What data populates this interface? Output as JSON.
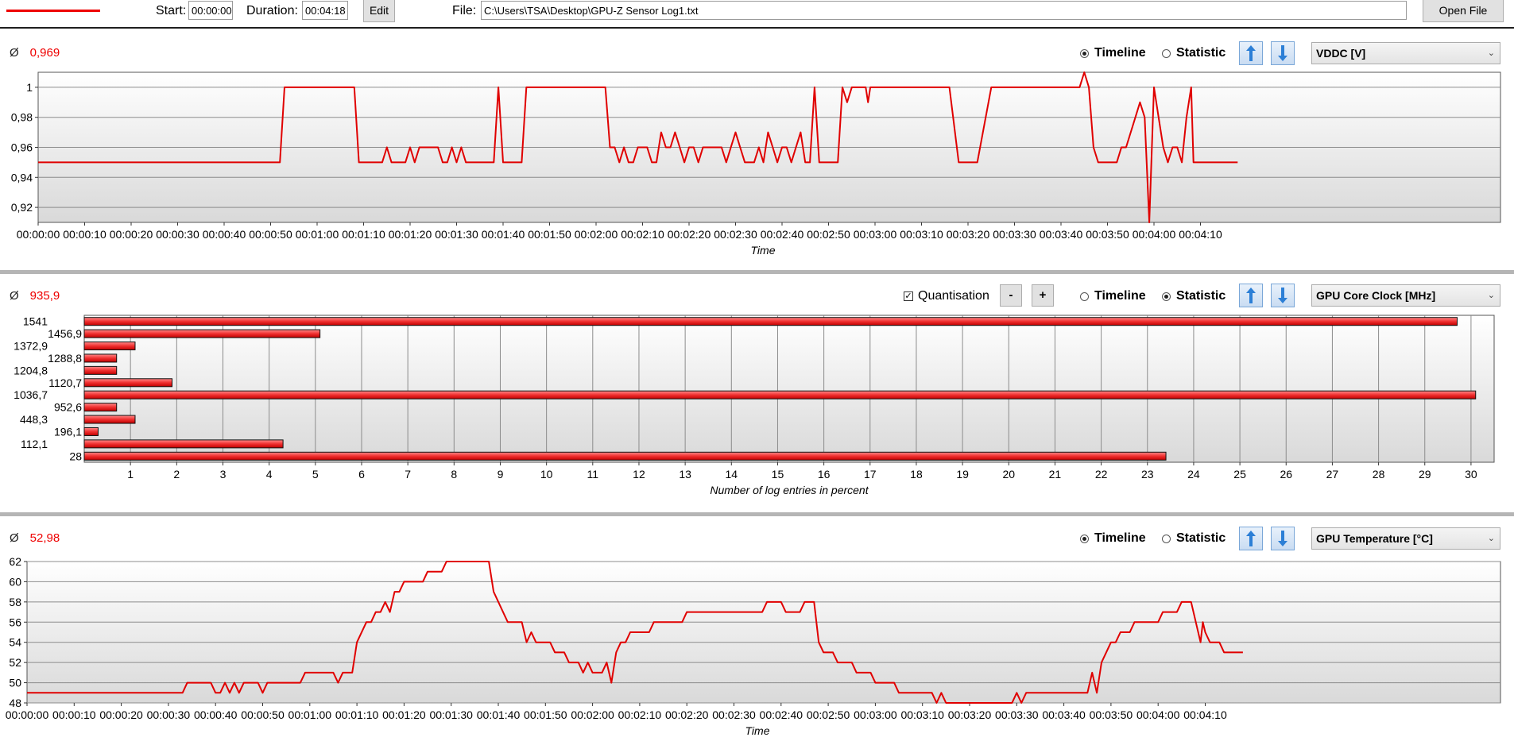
{
  "toolbar": {
    "start_label": "Start:",
    "start_value": "00:00:00",
    "duration_label": "Duration:",
    "duration_value": "00:04:18",
    "edit_label": "Edit",
    "file_label": "File:",
    "file_value": "C:\\Users\\TSA\\Desktop\\GPU-Z Sensor Log1.txt",
    "open_file_label": "Open File",
    "legend_color": "#e00000"
  },
  "panels": [
    {
      "avg_symbol": "Ø",
      "avg_value": "0,969",
      "timeline_label": "Timeline",
      "statistic_label": "Statistic",
      "mode": "Timeline",
      "sensor": "VDDC [V]"
    },
    {
      "avg_symbol": "Ø",
      "avg_value": "935,9",
      "quantisation_label": "Quantisation",
      "quantisation_checked": true,
      "minus_label": "-",
      "plus_label": "+",
      "timeline_label": "Timeline",
      "statistic_label": "Statistic",
      "mode": "Statistic",
      "sensor": "GPU Core Clock [MHz]"
    },
    {
      "avg_symbol": "Ø",
      "avg_value": "52,98",
      "timeline_label": "Timeline",
      "statistic_label": "Statistic",
      "mode": "Timeline",
      "sensor": "GPU Temperature [°C]"
    }
  ],
  "chart_data": [
    {
      "type": "line",
      "xlabel": "Time",
      "ylabel": "",
      "ylim": [
        0.91,
        1.01
      ],
      "yticks": [
        "1",
        "0,98",
        "0,96",
        "0,94",
        "0,92"
      ],
      "xticks": [
        "00:00:00",
        "00:00:10",
        "00:00:20",
        "00:00:30",
        "00:00:40",
        "00:00:50",
        "00:01:00",
        "00:01:10",
        "00:01:20",
        "00:01:30",
        "00:01:40",
        "00:01:50",
        "00:02:00",
        "00:02:10",
        "00:02:20",
        "00:02:30",
        "00:02:40",
        "00:02:50",
        "00:03:00",
        "00:03:10",
        "00:03:20",
        "00:03:30",
        "00:03:40",
        "00:03:50",
        "00:04:00",
        "00:04:10"
      ],
      "color": "#e00000",
      "points": [
        [
          0,
          0.95
        ],
        [
          52,
          0.95
        ],
        [
          53,
          1.0
        ],
        [
          68,
          1.0
        ],
        [
          69,
          0.95
        ],
        [
          74,
          0.95
        ],
        [
          75,
          0.96
        ],
        [
          76,
          0.95
        ],
        [
          79,
          0.95
        ],
        [
          80,
          0.96
        ],
        [
          81,
          0.95
        ],
        [
          82,
          0.96
        ],
        [
          86,
          0.96
        ],
        [
          87,
          0.95
        ],
        [
          88,
          0.95
        ],
        [
          89,
          0.96
        ],
        [
          90,
          0.95
        ],
        [
          91,
          0.96
        ],
        [
          92,
          0.95
        ],
        [
          98,
          0.95
        ],
        [
          99,
          1.0
        ],
        [
          100,
          0.95
        ],
        [
          104,
          0.95
        ],
        [
          105,
          1.0
        ],
        [
          122,
          1.0
        ],
        [
          123,
          0.96
        ],
        [
          124,
          0.96
        ],
        [
          125,
          0.95
        ],
        [
          126,
          0.96
        ],
        [
          127,
          0.95
        ],
        [
          128,
          0.95
        ],
        [
          129,
          0.96
        ],
        [
          131,
          0.96
        ],
        [
          132,
          0.95
        ],
        [
          133,
          0.95
        ],
        [
          134,
          0.97
        ],
        [
          135,
          0.96
        ],
        [
          136,
          0.96
        ],
        [
          137,
          0.97
        ],
        [
          138,
          0.96
        ],
        [
          139,
          0.95
        ],
        [
          140,
          0.96
        ],
        [
          141,
          0.96
        ],
        [
          142,
          0.95
        ],
        [
          143,
          0.96
        ],
        [
          147,
          0.96
        ],
        [
          148,
          0.95
        ],
        [
          149,
          0.96
        ],
        [
          150,
          0.97
        ],
        [
          151,
          0.96
        ],
        [
          152,
          0.95
        ],
        [
          154,
          0.95
        ],
        [
          155,
          0.96
        ],
        [
          156,
          0.95
        ],
        [
          157,
          0.97
        ],
        [
          158,
          0.96
        ],
        [
          159,
          0.95
        ],
        [
          160,
          0.96
        ],
        [
          161,
          0.96
        ],
        [
          162,
          0.95
        ],
        [
          163,
          0.96
        ],
        [
          164,
          0.97
        ],
        [
          165,
          0.95
        ],
        [
          166,
          0.95
        ],
        [
          167,
          1.0
        ],
        [
          168,
          0.95
        ],
        [
          172,
          0.95
        ],
        [
          173,
          1.0
        ],
        [
          174,
          0.99
        ],
        [
          175,
          1.0
        ],
        [
          178,
          1.0
        ],
        [
          178.5,
          0.99
        ],
        [
          179,
          1.0
        ],
        [
          196,
          1.0
        ],
        [
          198,
          0.95
        ],
        [
          202,
          0.95
        ],
        [
          205,
          1.0
        ],
        [
          224,
          1.0
        ],
        [
          225,
          1.01
        ],
        [
          226,
          1.0
        ],
        [
          227,
          0.96
        ],
        [
          228,
          0.95
        ],
        [
          232,
          0.95
        ],
        [
          233,
          0.96
        ],
        [
          234,
          0.96
        ],
        [
          236,
          0.98
        ],
        [
          237,
          0.99
        ],
        [
          238,
          0.98
        ],
        [
          239,
          0.91
        ],
        [
          240,
          1.0
        ],
        [
          241,
          0.98
        ],
        [
          242,
          0.96
        ],
        [
          243,
          0.95
        ],
        [
          244,
          0.96
        ],
        [
          245,
          0.96
        ],
        [
          246,
          0.95
        ],
        [
          247,
          0.98
        ],
        [
          248,
          1.0
        ],
        [
          248.5,
          0.95
        ],
        [
          258,
          0.95
        ]
      ]
    },
    {
      "type": "bar",
      "orientation": "horizontal",
      "xlabel": "Number of log entries in percent",
      "ylabel": "",
      "xlim": [
        0,
        30.5
      ],
      "xticks": [
        "1",
        "2",
        "3",
        "4",
        "5",
        "6",
        "7",
        "8",
        "9",
        "10",
        "11",
        "12",
        "13",
        "14",
        "15",
        "16",
        "17",
        "18",
        "19",
        "20",
        "21",
        "22",
        "23",
        "24",
        "25",
        "26",
        "27",
        "28",
        "29",
        "30"
      ],
      "categories": [
        "1541",
        "1456,9",
        "1372,9",
        "1288,8",
        "1204,8",
        "1120,7",
        "1036,7",
        "952,6",
        "448,3",
        "196,1",
        "112,1",
        "28"
      ],
      "values": [
        29.7,
        5.1,
        1.1,
        0.7,
        0.7,
        1.9,
        30.1,
        0.7,
        1.1,
        0.3,
        4.3,
        23.4
      ],
      "color": "#e00000"
    },
    {
      "type": "line",
      "xlabel": "Time",
      "ylabel": "",
      "ylim": [
        48,
        62
      ],
      "yticks": [
        "62",
        "60",
        "58",
        "56",
        "54",
        "52",
        "50",
        "48"
      ],
      "xticks": [
        "00:00:00",
        "00:00:10",
        "00:00:20",
        "00:00:30",
        "00:00:40",
        "00:00:50",
        "00:01:00",
        "00:01:10",
        "00:01:20",
        "00:01:30",
        "00:01:40",
        "00:01:50",
        "00:02:00",
        "00:02:10",
        "00:02:20",
        "00:02:30",
        "00:02:40",
        "00:02:50",
        "00:03:00",
        "00:03:10",
        "00:03:20",
        "00:03:30",
        "00:03:40",
        "00:03:50",
        "00:04:00",
        "00:04:10"
      ],
      "color": "#e00000",
      "points": [
        [
          0,
          49
        ],
        [
          33,
          49
        ],
        [
          34,
          50
        ],
        [
          39,
          50
        ],
        [
          40,
          49
        ],
        [
          41,
          49
        ],
        [
          42,
          50
        ],
        [
          43,
          49
        ],
        [
          44,
          50
        ],
        [
          45,
          49
        ],
        [
          46,
          50
        ],
        [
          49,
          50
        ],
        [
          50,
          49
        ],
        [
          51,
          50
        ],
        [
          58,
          50
        ],
        [
          59,
          51
        ],
        [
          65,
          51
        ],
        [
          66,
          50
        ],
        [
          67,
          51
        ],
        [
          69,
          51
        ],
        [
          70,
          54
        ],
        [
          72,
          56
        ],
        [
          73,
          56
        ],
        [
          74,
          57
        ],
        [
          75,
          57
        ],
        [
          76,
          58
        ],
        [
          77,
          57
        ],
        [
          78,
          59
        ],
        [
          79,
          59
        ],
        [
          80,
          60
        ],
        [
          84,
          60
        ],
        [
          85,
          61
        ],
        [
          88,
          61
        ],
        [
          89,
          62
        ],
        [
          98,
          62
        ],
        [
          99,
          59
        ],
        [
          102,
          56
        ],
        [
          105,
          56
        ],
        [
          106,
          54
        ],
        [
          107,
          55
        ],
        [
          108,
          54
        ],
        [
          111,
          54
        ],
        [
          112,
          53
        ],
        [
          114,
          53
        ],
        [
          115,
          52
        ],
        [
          117,
          52
        ],
        [
          118,
          51
        ],
        [
          119,
          52
        ],
        [
          120,
          51
        ],
        [
          122,
          51
        ],
        [
          123,
          52
        ],
        [
          124,
          50
        ],
        [
          125,
          53
        ],
        [
          126,
          54
        ],
        [
          127,
          54
        ],
        [
          128,
          55
        ],
        [
          132,
          55
        ],
        [
          133,
          56
        ],
        [
          139,
          56
        ],
        [
          140,
          57
        ],
        [
          156,
          57
        ],
        [
          157,
          58
        ],
        [
          160,
          58
        ],
        [
          161,
          57
        ],
        [
          164,
          57
        ],
        [
          165,
          58
        ],
        [
          167,
          58
        ],
        [
          168,
          54
        ],
        [
          169,
          53
        ],
        [
          171,
          53
        ],
        [
          172,
          52
        ],
        [
          175,
          52
        ],
        [
          176,
          51
        ],
        [
          179,
          51
        ],
        [
          180,
          50
        ],
        [
          184,
          50
        ],
        [
          185,
          49
        ],
        [
          192,
          49
        ],
        [
          193,
          48
        ],
        [
          194,
          49
        ],
        [
          195,
          48
        ],
        [
          209,
          48
        ],
        [
          210,
          49
        ],
        [
          211,
          48
        ],
        [
          212,
          49
        ],
        [
          225,
          49
        ],
        [
          226,
          51
        ],
        [
          227,
          49
        ],
        [
          228,
          52
        ],
        [
          230,
          54
        ],
        [
          231,
          54
        ],
        [
          232,
          55
        ],
        [
          234,
          55
        ],
        [
          235,
          56
        ],
        [
          240,
          56
        ],
        [
          241,
          57
        ],
        [
          244,
          57
        ],
        [
          245,
          58
        ],
        [
          247,
          58
        ],
        [
          249,
          54
        ],
        [
          249.5,
          56
        ],
        [
          250,
          55
        ],
        [
          251,
          54
        ],
        [
          253,
          54
        ],
        [
          254,
          53
        ],
        [
          258,
          53
        ]
      ]
    }
  ]
}
